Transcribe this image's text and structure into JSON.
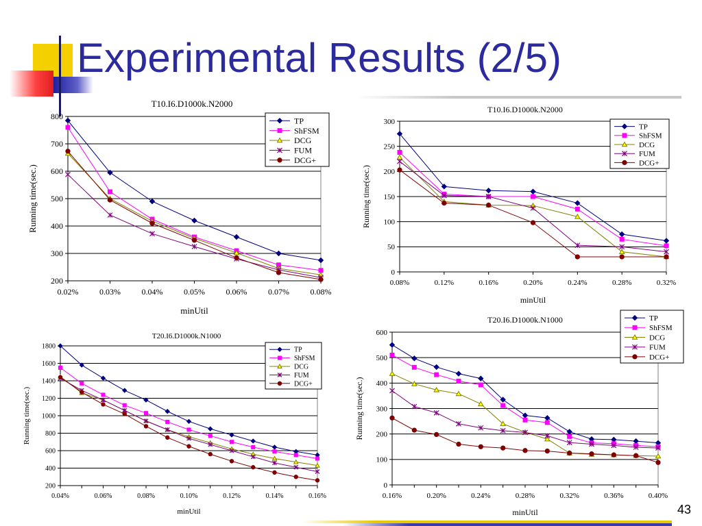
{
  "slide": {
    "title": "Experimental Results (2/5)",
    "page_number": "43"
  },
  "colors": {
    "title": "#2b2b9e",
    "TP": "#000080",
    "ShFSM": "#ff00ff",
    "DCG": "#808000",
    "FUM": "#800080",
    "DCG+": "#800000"
  },
  "chart_data": [
    {
      "type": "line",
      "title": "T10.I6.D1000k.N2000",
      "xlabel": "minUtil",
      "ylabel": "Running time(sec.)",
      "categories": [
        "0.02%",
        "0.03%",
        "0.04%",
        "0.05%",
        "0.06%",
        "0.07%",
        "0.08%"
      ],
      "ylim": [
        200,
        800
      ],
      "yticks": [
        200,
        300,
        400,
        500,
        600,
        700,
        800
      ],
      "legend": "top-right",
      "grid": true,
      "series": [
        {
          "name": "TP",
          "marker": "diamond",
          "values": [
            785,
            595,
            490,
            420,
            360,
            300,
            275
          ]
        },
        {
          "name": "ShFSM",
          "marker": "square",
          "values": [
            760,
            525,
            425,
            360,
            310,
            258,
            238
          ]
        },
        {
          "name": "DCG",
          "marker": "triangle",
          "values": [
            665,
            500,
            418,
            355,
            302,
            245,
            222
          ]
        },
        {
          "name": "FUM",
          "marker": "x",
          "values": [
            588,
            440,
            372,
            325,
            280,
            240,
            212
          ]
        },
        {
          "name": "DCG+",
          "marker": "circle",
          "values": [
            673,
            495,
            410,
            348,
            284,
            230,
            205
          ]
        }
      ]
    },
    {
      "type": "line",
      "title": "T10.I6.D1000k.N2000",
      "xlabel": "minUtil",
      "ylabel": "Running time(sec.)",
      "categories": [
        "0.08%",
        "0.12%",
        "0.16%",
        "0.20%",
        "0.24%",
        "0.28%",
        "0.32%"
      ],
      "ylim": [
        0,
        300
      ],
      "yticks": [
        0,
        50,
        100,
        150,
        200,
        250,
        300
      ],
      "legend": "top-right",
      "grid": true,
      "series": [
        {
          "name": "TP",
          "marker": "diamond",
          "values": [
            275,
            170,
            162,
            160,
            137,
            75,
            62
          ]
        },
        {
          "name": "ShFSM",
          "marker": "square",
          "values": [
            238,
            155,
            150,
            150,
            125,
            65,
            52
          ]
        },
        {
          "name": "DCG",
          "marker": "triangle",
          "values": [
            228,
            140,
            133,
            132,
            110,
            40,
            30
          ]
        },
        {
          "name": "FUM",
          "marker": "x",
          "values": [
            220,
            152,
            150,
            127,
            53,
            50,
            40
          ]
        },
        {
          "name": "DCG+",
          "marker": "circle",
          "values": [
            203,
            137,
            133,
            98,
            30,
            30,
            30
          ]
        }
      ]
    },
    {
      "type": "line",
      "title": "T20.I6.D1000k.N1000",
      "xlabel": "minUtil",
      "ylabel": "Running time(sec.)",
      "categories": [
        "0.04%",
        "",
        "0.06%",
        "",
        "0.08%",
        "",
        "0.10%",
        "",
        "0.12%",
        "",
        "0.14%",
        "",
        "0.16%"
      ],
      "ylim": [
        200,
        1800
      ],
      "yticks": [
        200,
        400,
        600,
        800,
        1000,
        1200,
        1400,
        1600,
        1800
      ],
      "legend": "top-right",
      "grid": true,
      "series": [
        {
          "name": "TP",
          "marker": "diamond",
          "values": [
            1800,
            1580,
            1430,
            1290,
            1180,
            1050,
            935,
            850,
            780,
            710,
            640,
            590,
            550
          ]
        },
        {
          "name": "ShFSM",
          "marker": "square",
          "values": [
            1550,
            1370,
            1240,
            1120,
            1030,
            930,
            840,
            770,
            700,
            640,
            590,
            550,
            510
          ]
        },
        {
          "name": "DCG",
          "marker": "triangle",
          "values": [
            1450,
            1260,
            1180,
            1060,
            940,
            840,
            760,
            690,
            620,
            560,
            510,
            470,
            430
          ]
        },
        {
          "name": "FUM",
          "marker": "x",
          "values": [
            1430,
            1290,
            1180,
            1060,
            940,
            840,
            740,
            670,
            600,
            530,
            460,
            410,
            360
          ]
        },
        {
          "name": "DCG+",
          "marker": "circle",
          "values": [
            1440,
            1270,
            1130,
            1020,
            880,
            750,
            650,
            560,
            480,
            410,
            350,
            300,
            260
          ]
        }
      ]
    },
    {
      "type": "line",
      "title": "T20.I6.D1000k.N1000",
      "xlabel": "minUtil",
      "ylabel": "Running time(sec.)",
      "categories": [
        "0.16%",
        "",
        "0.20%",
        "",
        "0.24%",
        "",
        "0.28%",
        "",
        "0.32%",
        "",
        "0.36%",
        "",
        "0.40%"
      ],
      "ylim": [
        0,
        600
      ],
      "yticks": [
        0,
        100,
        200,
        300,
        400,
        500,
        600
      ],
      "legend": "top-right",
      "grid": true,
      "series": [
        {
          "name": "TP",
          "marker": "diamond",
          "values": [
            550,
            497,
            463,
            437,
            418,
            335,
            273,
            263,
            209,
            180,
            178,
            172,
            165
          ]
        },
        {
          "name": "ShFSM",
          "marker": "square",
          "values": [
            510,
            462,
            433,
            408,
            393,
            312,
            255,
            245,
            190,
            165,
            162,
            155,
            150
          ]
        },
        {
          "name": "DCG",
          "marker": "triangle",
          "values": [
            437,
            397,
            373,
            358,
            318,
            240,
            207,
            180,
            125,
            120,
            118,
            115,
            113
          ]
        },
        {
          "name": "FUM",
          "marker": "x",
          "values": [
            370,
            308,
            283,
            240,
            224,
            213,
            206,
            193,
            166,
            160,
            155,
            148,
            145
          ]
        },
        {
          "name": "DCG+",
          "marker": "circle",
          "values": [
            263,
            215,
            198,
            160,
            150,
            145,
            135,
            133,
            125,
            122,
            118,
            115,
            88
          ]
        }
      ]
    }
  ]
}
